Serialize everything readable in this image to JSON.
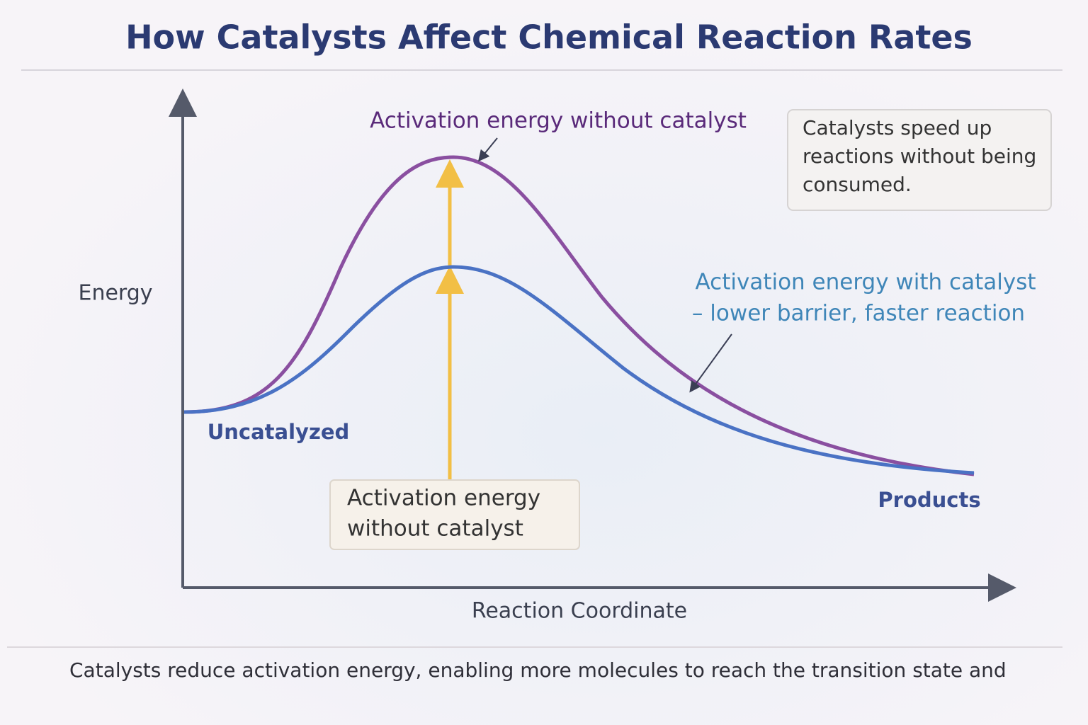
{
  "header": {
    "title": "How Catalysts Affect Chemical Reaction Rates"
  },
  "axes": {
    "y_label": "Energy",
    "x_label": "Reaction Coordinate"
  },
  "labels": {
    "peak_uncatalyzed": "Activation energy without catalyst",
    "catalyzed": [
      "Activation energy with catalyst",
      "– lower barrier, faster reaction"
    ],
    "start": "Uncatalyzed",
    "end": "Products",
    "box": [
      "Activation energy",
      "without catalyst"
    ]
  },
  "note": [
    "Catalysts speed up",
    "reactions without being",
    "consumed."
  ],
  "footer": "Catalysts reduce activation energy, enabling more molecules to reach the transition state and"
}
